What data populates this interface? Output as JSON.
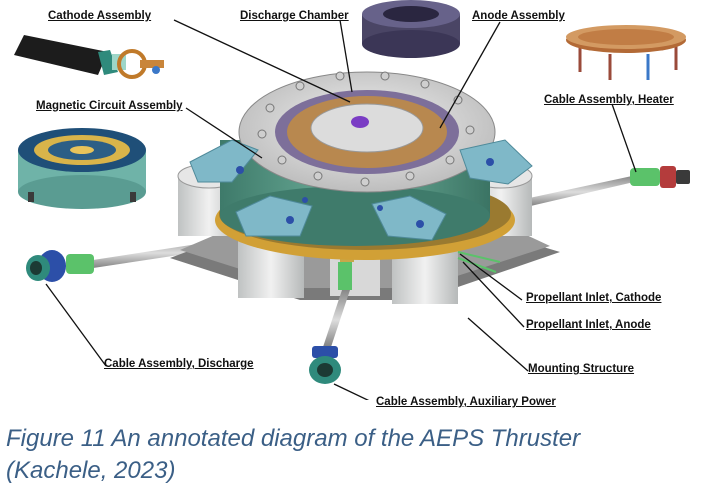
{
  "labels": {
    "cathode_assembly": "Cathode Assembly",
    "discharge_chamber": "Discharge Chamber",
    "anode_assembly": "Anode Assembly",
    "magnetic_circuit_assembly": "Magnetic Circuit Assembly",
    "cable_assembly_heater": "Cable Assembly, Heater",
    "propellant_inlet_cathode": "Propellant Inlet, Cathode",
    "propellant_inlet_anode": "Propellant Inlet, Anode",
    "cable_assembly_discharge": "Cable Assembly, Discharge",
    "mounting_structure": "Mounting Structure",
    "cable_assembly_auxiliary_power": "Cable Assembly, Auxiliary Power"
  },
  "caption": {
    "line1": "Figure 11 An annotated diagram of the AEPS Thruster",
    "line2": "(Kachele, 2023)"
  }
}
